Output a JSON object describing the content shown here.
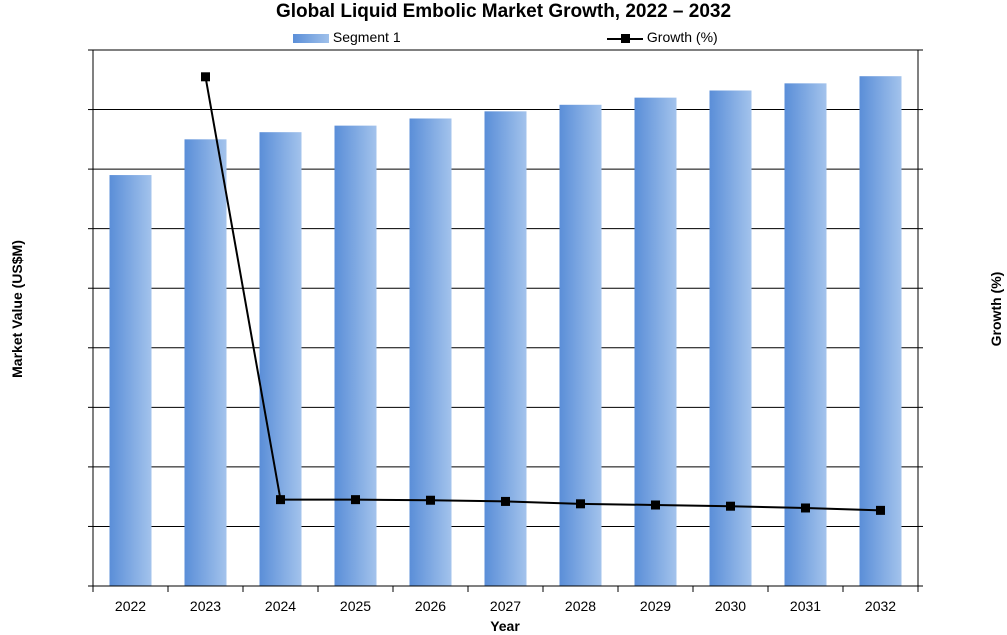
{
  "chart_data": {
    "type": "bar",
    "title": "Global Liquid Embolic Market Growth, 2022 – 2032",
    "categories": [
      "2022",
      "2023",
      "2024",
      "2025",
      "2026",
      "2027",
      "2028",
      "2029",
      "2030",
      "2031",
      "2032"
    ],
    "series": [
      {
        "name": "Segment 1",
        "type": "bar",
        "axis": "left",
        "color": "#6f9fe0",
        "values": [
          690,
          750,
          762,
          773,
          785,
          797,
          808,
          820,
          832,
          844,
          856
        ]
      },
      {
        "name": "Growth (%)",
        "type": "line",
        "axis": "right",
        "color": "#000000",
        "values": [
          null,
          8.55,
          1.45,
          1.45,
          1.44,
          1.42,
          1.38,
          1.36,
          1.34,
          1.31,
          1.27
        ]
      }
    ],
    "xlabel": "Year",
    "ylabel": "Market Value (US$M)",
    "y2label": "Growth (%)",
    "ylim": [
      0,
      900
    ],
    "y2lim": [
      0,
      9
    ],
    "grid": true,
    "legend_position": "top"
  }
}
